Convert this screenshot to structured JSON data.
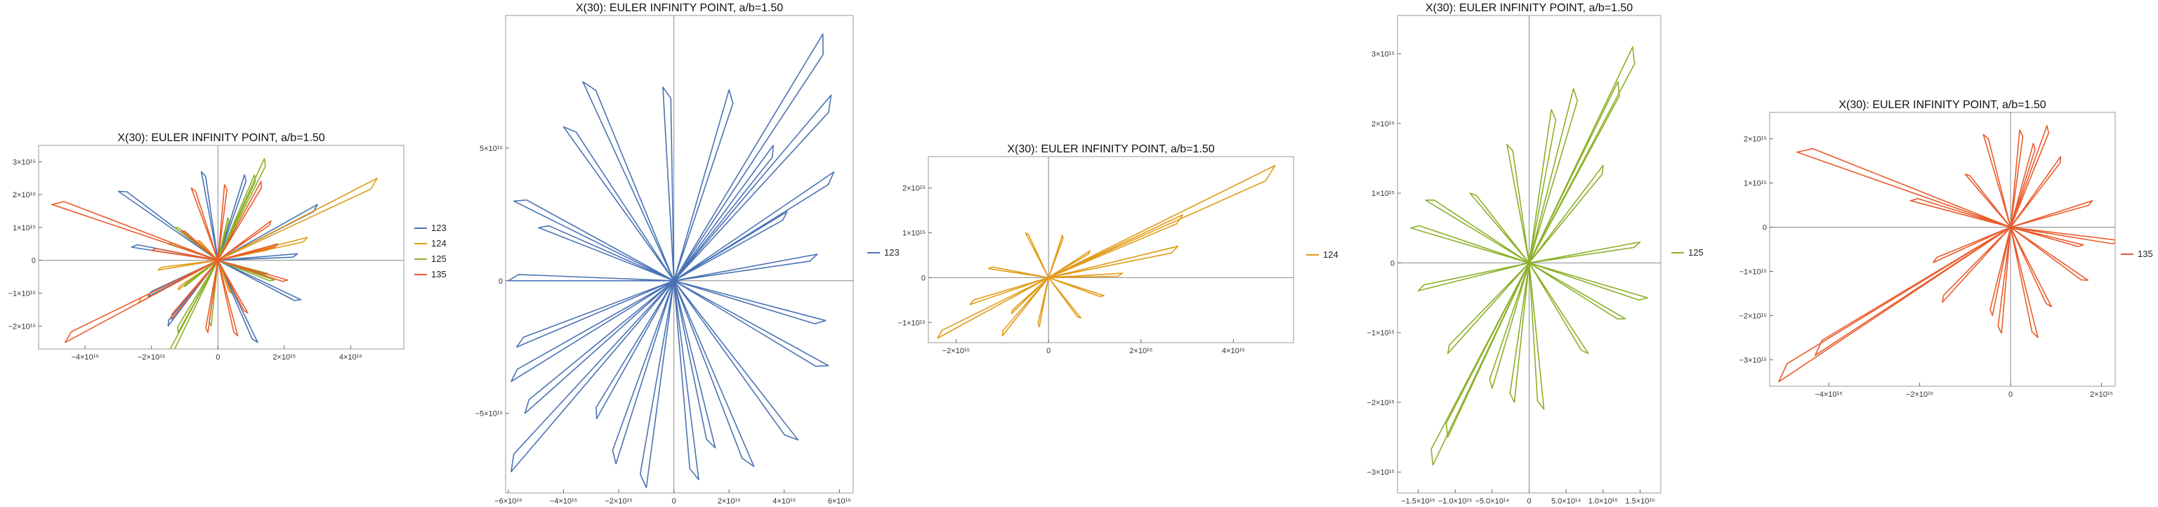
{
  "chart_data": [
    {
      "type": "line",
      "title": "X(30): EULER INFINITY POINT, a/b=1.50",
      "xlabel": "",
      "ylabel": "",
      "xlim": [
        -5400000000000000.0,
        5600000000000000.0
      ],
      "ylim": [
        -2700000000000000.0,
        3500000000000000.0
      ],
      "x_ticks": [
        {
          "v": -4000000000000000.0,
          "label": "−4×10¹⁵"
        },
        {
          "v": -2000000000000000.0,
          "label": "−2×10¹⁵"
        },
        {
          "v": 0,
          "label": "0"
        },
        {
          "v": 2000000000000000.0,
          "label": "2×10¹⁵"
        },
        {
          "v": 4000000000000000.0,
          "label": "4×10¹⁵"
        }
      ],
      "y_ticks": [
        {
          "v": -2000000000000000.0,
          "label": "−2×10¹⁵"
        },
        {
          "v": -1000000000000000.0,
          "label": "−1×10¹⁵"
        },
        {
          "v": 0,
          "label": "0"
        },
        {
          "v": 1000000000000000.0,
          "label": "1×10¹⁵"
        },
        {
          "v": 2000000000000000.0,
          "label": "2×10¹⁵"
        },
        {
          "v": 3000000000000000.0,
          "label": "3×10¹⁵"
        }
      ],
      "legend": {
        "placement": "right"
      },
      "series": [
        {
          "name": "123",
          "color": "#4a73b5",
          "endpoints": [
            [
              -3000000000000000.0,
              2100000000000000.0
            ],
            [
              2500000000000000.0,
              -1200000000000000.0
            ],
            [
              -1500000000000000.0,
              -2000000000000000.0
            ],
            [
              3000000000000000.0,
              1700000000000000.0
            ],
            [
              -500000000000000.0,
              2700000000000000.0
            ],
            [
              1200000000000000.0,
              -2500000000000000.0
            ],
            [
              -2600000000000000.0,
              400000000000000.0
            ],
            [
              800000000000000.0,
              2600000000000000.0
            ],
            [
              2400000000000000.0,
              200000000000000.0
            ],
            [
              -2100000000000000.0,
              -1100000000000000.0
            ]
          ]
        },
        {
          "name": "124",
          "color": "#e19b16",
          "endpoints": [
            [
              4800000000000000.0,
              2500000000000000.0
            ],
            [
              -2400000000000000.0,
              -1300000000000000.0
            ],
            [
              2700000000000000.0,
              700000000000000.0
            ],
            [
              -1200000000000000.0,
              -900000000000000.0
            ],
            [
              1600000000000000.0,
              400000000000000.0
            ],
            [
              -600000000000000.0,
              600000000000000.0
            ],
            [
              400000000000000.0,
              -1000000000000000.0
            ],
            [
              -1800000000000000.0,
              -300000000000000.0
            ]
          ]
        },
        {
          "name": "125",
          "color": "#8cb029",
          "endpoints": [
            [
              1400000000000000.0,
              3100000000000000.0
            ],
            [
              -1400000000000000.0,
              -2900000000000000.0
            ],
            [
              1100000000000000.0,
              2600000000000000.0
            ],
            [
              -1200000000000000.0,
              -2200000000000000.0
            ],
            [
              -1500000000000000.0,
              500000000000000.0
            ],
            [
              1500000000000000.0,
              -400000000000000.0
            ],
            [
              300000000000000.0,
              1300000000000000.0
            ],
            [
              -200000000000000.0,
              -2000000000000000.0
            ],
            [
              800000000000000.0,
              600000000000000.0
            ],
            [
              -1000000000000000.0,
              -800000000000000.0
            ],
            [
              1700000000000000.0,
              -600000000000000.0
            ],
            [
              -1300000000000000.0,
              1000000000000000.0
            ]
          ]
        },
        {
          "name": "135",
          "color": "#ea5b2b",
          "endpoints": [
            [
              -5000000000000000.0,
              1700000000000000.0
            ],
            [
              -4600000000000000.0,
              -2500000000000000.0
            ],
            [
              1300000000000000.0,
              2400000000000000.0
            ],
            [
              2100000000000000.0,
              -600000000000000.0
            ],
            [
              -1400000000000000.0,
              -1800000000000000.0
            ],
            [
              600000000000000.0,
              -2300000000000000.0
            ],
            [
              -800000000000000.0,
              2200000000000000.0
            ],
            [
              1600000000000000.0,
              1200000000000000.0
            ],
            [
              -2000000000000000.0,
              300000000000000.0
            ],
            [
              900000000000000.0,
              -1600000000000000.0
            ],
            [
              1800000000000000.0,
              500000000000000.0
            ],
            [
              -300000000000000.0,
              -2200000000000000.0
            ],
            [
              200000000000000.0,
              2300000000000000.0
            ],
            [
              -1100000000000000.0,
              900000000000000.0
            ]
          ]
        }
      ]
    },
    {
      "type": "line",
      "title": "X(30): EULER INFINITY POINT, a/b=1.50",
      "xlabel": "",
      "ylabel": "",
      "xlim": [
        -6100000000000000.0,
        6500000000000000.0
      ],
      "ylim": [
        -8000000000000000.0,
        1e+16
      ],
      "x_ticks": [
        {
          "v": -6000000000000000.0,
          "label": "−6×10¹⁵"
        },
        {
          "v": -4000000000000000.0,
          "label": "−4×10¹⁵"
        },
        {
          "v": -2000000000000000.0,
          "label": "−2×10¹⁵"
        },
        {
          "v": 0,
          "label": "0"
        },
        {
          "v": 2000000000000000.0,
          "label": "2×10¹⁵"
        },
        {
          "v": 4000000000000000.0,
          "label": "4×10¹⁵"
        },
        {
          "v": 6000000000000000.0,
          "label": "6×10¹⁵"
        }
      ],
      "y_ticks": [
        {
          "v": -5000000000000000.0,
          "label": "−5×10¹⁵"
        },
        {
          "v": 0,
          "label": "0"
        },
        {
          "v": 5000000000000000.0,
          "label": "5×10¹⁵"
        }
      ],
      "legend": {
        "placement": "right"
      },
      "series": [
        {
          "name": "123",
          "color": "#4a73b5",
          "endpoints": [
            [
              5400000000000000.0,
              9300000000000000.0
            ],
            [
              -5900000000000000.0,
              -7200000000000000.0
            ],
            [
              5700000000000000.0,
              7000000000000000.0
            ],
            [
              -5800000000000000.0,
              3000000000000000.0
            ],
            [
              -3300000000000000.0,
              7500000000000000.0
            ],
            [
              4500000000000000.0,
              -6000000000000000.0
            ],
            [
              -5400000000000000.0,
              -5000000000000000.0
            ],
            [
              5200000000000000.0,
              1000000000000000.0
            ],
            [
              -6000000000000000.0,
              0
            ],
            [
              2000000000000000.0,
              7200000000000000.0
            ],
            [
              -1000000000000000.0,
              -7800000000000000.0
            ],
            [
              900000000000000.0,
              -7500000000000000.0
            ],
            [
              -4000000000000000.0,
              5800000000000000.0
            ],
            [
              5600000000000000.0,
              -3200000000000000.0
            ],
            [
              -5700000000000000.0,
              -2500000000000000.0
            ],
            [
              3600000000000000.0,
              5100000000000000.0
            ],
            [
              -2100000000000000.0,
              -6900000000000000.0
            ],
            [
              5800000000000000.0,
              4100000000000000.0
            ],
            [
              -4900000000000000.0,
              2000000000000000.0
            ],
            [
              2900000000000000.0,
              -7000000000000000.0
            ],
            [
              -400000000000000.0,
              7300000000000000.0
            ],
            [
              5500000000000000.0,
              -1500000000000000.0
            ],
            [
              -5900000000000000.0,
              -3800000000000000.0
            ],
            [
              4100000000000000.0,
              2600000000000000.0
            ],
            [
              -2800000000000000.0,
              -5200000000000000.0
            ],
            [
              1500000000000000.0,
              -6300000000000000.0
            ]
          ]
        }
      ]
    },
    {
      "type": "line",
      "title": "X(30): EULER INFINITY POINT, a/b=1.50",
      "xlabel": "",
      "ylabel": "",
      "xlim": [
        -2600000000000000.0,
        5300000000000000.0
      ],
      "ylim": [
        -1450000000000000.0,
        2700000000000000.0
      ],
      "x_ticks": [
        {
          "v": -2000000000000000.0,
          "label": "−2×10¹⁵"
        },
        {
          "v": 0,
          "label": "0"
        },
        {
          "v": 2000000000000000.0,
          "label": "2×10¹⁵"
        },
        {
          "v": 4000000000000000.0,
          "label": "4×10¹⁵"
        }
      ],
      "y_ticks": [
        {
          "v": -1000000000000000.0,
          "label": "−1×10¹⁵"
        },
        {
          "v": 0,
          "label": "0"
        },
        {
          "v": 1000000000000000.0,
          "label": "1×10¹⁵"
        },
        {
          "v": 2000000000000000.0,
          "label": "2×10¹⁵"
        }
      ],
      "legend": {
        "placement": "right"
      },
      "series": [
        {
          "name": "124",
          "color": "#e19b16",
          "endpoints": [
            [
              4900000000000000.0,
              2500000000000000.0
            ],
            [
              -2400000000000000.0,
              -1350000000000000.0
            ],
            [
              2900000000000000.0,
              1400000000000000.0
            ],
            [
              2800000000000000.0,
              700000000000000.0
            ],
            [
              -1700000000000000.0,
              -600000000000000.0
            ],
            [
              1600000000000000.0,
              100000000000000.0
            ],
            [
              -1000000000000000.0,
              -1300000000000000.0
            ],
            [
              700000000000000.0,
              -900000000000000.0
            ],
            [
              -500000000000000.0,
              1000000000000000.0
            ],
            [
              300000000000000.0,
              950000000000000.0
            ],
            [
              1200000000000000.0,
              -400000000000000.0
            ],
            [
              -1300000000000000.0,
              200000000000000.0
            ],
            [
              -800000000000000.0,
              -800000000000000.0
            ],
            [
              900000000000000.0,
              600000000000000.0
            ],
            [
              -200000000000000.0,
              -1100000000000000.0
            ]
          ]
        }
      ]
    },
    {
      "type": "line",
      "title": "X(30): EULER INFINITY POINT, a/b=1.50",
      "xlabel": "",
      "ylabel": "",
      "xlim": [
        -1780000000000000.0,
        1780000000000000.0
      ],
      "ylim": [
        -3300000000000000.0,
        3550000000000000.0
      ],
      "x_ticks": [
        {
          "v": -1500000000000000.0,
          "label": "−1.5×10¹⁵"
        },
        {
          "v": -1000000000000000.0,
          "label": "−1.0×10¹⁵"
        },
        {
          "v": -500000000000000.0,
          "label": "−5.0×10¹⁴"
        },
        {
          "v": 0,
          "label": "0"
        },
        {
          "v": 500000000000000.0,
          "label": "5.0×10¹⁴"
        },
        {
          "v": 1000000000000000.0,
          "label": "1.0×10¹⁵"
        },
        {
          "v": 1500000000000000.0,
          "label": "1.5×10¹⁵"
        }
      ],
      "y_ticks": [
        {
          "v": -3000000000000000.0,
          "label": "−3×10¹⁵"
        },
        {
          "v": -2000000000000000.0,
          "label": "−2×10¹⁵"
        },
        {
          "v": -1000000000000000.0,
          "label": "−1×10¹⁵"
        },
        {
          "v": 0,
          "label": "0"
        },
        {
          "v": 1000000000000000.0,
          "label": "1×10¹⁵"
        },
        {
          "v": 2000000000000000.0,
          "label": "2×10¹⁵"
        },
        {
          "v": 3000000000000000.0,
          "label": "3×10¹⁵"
        }
      ],
      "legend": {
        "placement": "right"
      },
      "series": [
        {
          "name": "125",
          "color": "#8cb029",
          "endpoints": [
            [
              1400000000000000.0,
              3100000000000000.0
            ],
            [
              -1300000000000000.0,
              -2900000000000000.0
            ],
            [
              1200000000000000.0,
              2600000000000000.0
            ],
            [
              -1100000000000000.0,
              -2500000000000000.0
            ],
            [
              -1600000000000000.0,
              500000000000000.0
            ],
            [
              1600000000000000.0,
              -500000000000000.0
            ],
            [
              300000000000000.0,
              2200000000000000.0
            ],
            [
              -200000000000000.0,
              -2000000000000000.0
            ],
            [
              1000000000000000.0,
              1400000000000000.0
            ],
            [
              -1100000000000000.0,
              -1300000000000000.0
            ],
            [
              1500000000000000.0,
              300000000000000.0
            ],
            [
              -1400000000000000.0,
              900000000000000.0
            ],
            [
              200000000000000.0,
              -2100000000000000.0
            ],
            [
              -300000000000000.0,
              1700000000000000.0
            ],
            [
              800000000000000.0,
              -1300000000000000.0
            ],
            [
              -800000000000000.0,
              1000000000000000.0
            ],
            [
              1300000000000000.0,
              -800000000000000.0
            ],
            [
              -1500000000000000.0,
              -400000000000000.0
            ],
            [
              600000000000000.0,
              2500000000000000.0
            ],
            [
              -500000000000000.0,
              -1800000000000000.0
            ]
          ]
        }
      ]
    },
    {
      "type": "line",
      "title": "X(30): EULER INFINITY POINT, a/b=1.50",
      "xlabel": "",
      "ylabel": "",
      "xlim": [
        -5300000000000000.0,
        2300000000000000.0
      ],
      "ylim": [
        -3600000000000000.0,
        2600000000000000.0
      ],
      "x_ticks": [
        {
          "v": -4000000000000000.0,
          "label": "−4×10¹⁵"
        },
        {
          "v": -2000000000000000.0,
          "label": "−2×10¹⁵"
        },
        {
          "v": 0,
          "label": "0"
        },
        {
          "v": 2000000000000000.0,
          "label": "2×10¹⁵"
        }
      ],
      "y_ticks": [
        {
          "v": -3000000000000000.0,
          "label": "−3×10¹⁵"
        },
        {
          "v": -2000000000000000.0,
          "label": "−2×10¹⁵"
        },
        {
          "v": -1000000000000000.0,
          "label": "−1×10¹⁵"
        },
        {
          "v": 0,
          "label": "0"
        },
        {
          "v": 1000000000000000.0,
          "label": "1×10¹⁵"
        },
        {
          "v": 2000000000000000.0,
          "label": "2×10¹⁵"
        }
      ],
      "legend": {
        "placement": "right"
      },
      "series": [
        {
          "name": "135",
          "color": "#ea5b2b",
          "endpoints": [
            [
              -4700000000000000.0,
              1700000000000000.0
            ],
            [
              -5100000000000000.0,
              -3500000000000000.0
            ],
            [
              -4300000000000000.0,
              -2900000000000000.0
            ],
            [
              800000000000000.0,
              2300000000000000.0
            ],
            [
              1600000000000000.0,
              -400000000000000.0
            ],
            [
              2400000000000000.0,
              -300000000000000.0
            ],
            [
              -1500000000000000.0,
              -1700000000000000.0
            ],
            [
              600000000000000.0,
              -2500000000000000.0
            ],
            [
              -600000000000000.0,
              2100000000000000.0
            ],
            [
              1100000000000000.0,
              1600000000000000.0
            ],
            [
              -2200000000000000.0,
              600000000000000.0
            ],
            [
              900000000000000.0,
              -1800000000000000.0
            ],
            [
              1800000000000000.0,
              600000000000000.0
            ],
            [
              -200000000000000.0,
              -2400000000000000.0
            ],
            [
              200000000000000.0,
              2200000000000000.0
            ],
            [
              -1000000000000000.0,
              1200000000000000.0
            ],
            [
              1700000000000000.0,
              -1200000000000000.0
            ],
            [
              -1700000000000000.0,
              -800000000000000.0
            ],
            [
              500000000000000.0,
              1900000000000000.0
            ],
            [
              -400000000000000.0,
              -2000000000000000.0
            ]
          ]
        }
      ]
    }
  ]
}
